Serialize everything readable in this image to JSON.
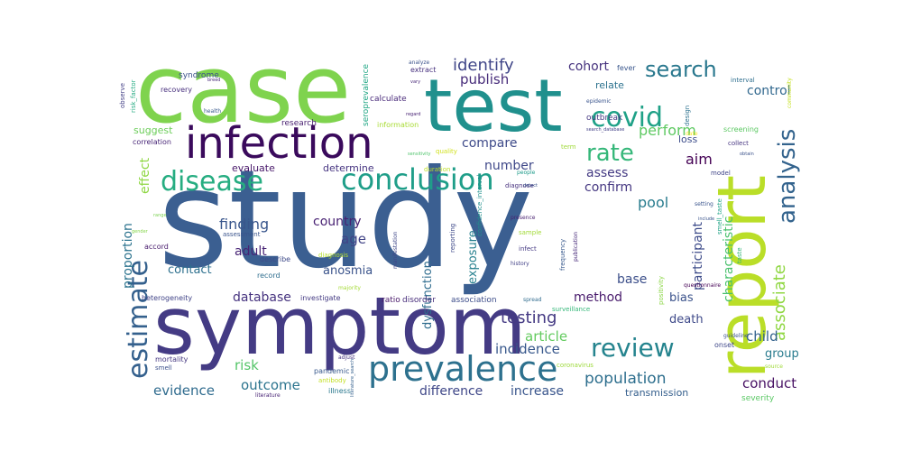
{
  "wordcloud": {
    "words": [
      {
        "text": "study",
        "color": "#3b5f91"
      },
      {
        "text": "case",
        "color": "#7fd34e"
      },
      {
        "text": "test",
        "color": "#20908d"
      },
      {
        "text": "symptom",
        "color": "#443b84"
      },
      {
        "text": "report",
        "color": "#bade28"
      },
      {
        "text": "infection",
        "color": "#3a0a5c"
      },
      {
        "text": "prevalence",
        "color": "#2d718e"
      },
      {
        "text": "conclusion",
        "color": "#1f9e89"
      },
      {
        "text": "disease",
        "color": "#26ad81"
      },
      {
        "text": "estimate",
        "color": "#34608d"
      },
      {
        "text": "covid",
        "color": "#1fa187"
      },
      {
        "text": "analysis",
        "color": "#33638d"
      },
      {
        "text": "review",
        "color": "#25848e"
      },
      {
        "text": "search",
        "color": "#2a788e"
      },
      {
        "text": "rate",
        "color": "#35b779"
      },
      {
        "text": "testing",
        "color": "#443983"
      },
      {
        "text": "identify",
        "color": "#404688"
      },
      {
        "text": "associate",
        "color": "#90d743"
      },
      {
        "text": "population",
        "color": "#2e6f8e"
      },
      {
        "text": "compare",
        "color": "#3e4a89"
      },
      {
        "text": "finding",
        "color": "#39568c"
      },
      {
        "text": "proportion",
        "color": "#2c738e"
      },
      {
        "text": "effect",
        "color": "#8fd744"
      },
      {
        "text": "publish",
        "color": "#472c7a"
      },
      {
        "text": "cohort",
        "color": "#46327e"
      },
      {
        "text": "perform",
        "color": "#5ec962"
      },
      {
        "text": "number",
        "color": "#3f4889"
      },
      {
        "text": "assess",
        "color": "#443a83"
      },
      {
        "text": "aim",
        "color": "#440154"
      },
      {
        "text": "confirm",
        "color": "#453781"
      },
      {
        "text": "pool",
        "color": "#287c8e"
      },
      {
        "text": "country",
        "color": "#482173"
      },
      {
        "text": "age",
        "color": "#414487"
      },
      {
        "text": "participant",
        "color": "#3e4c8a"
      },
      {
        "text": "characteristic",
        "color": "#4ac16d"
      },
      {
        "text": "control",
        "color": "#31688e"
      },
      {
        "text": "evidence",
        "color": "#2f6b8e"
      },
      {
        "text": "outcome",
        "color": "#2b748e"
      },
      {
        "text": "difference",
        "color": "#3f4788"
      },
      {
        "text": "increase",
        "color": "#39558c"
      },
      {
        "text": "incidence",
        "color": "#38588c"
      },
      {
        "text": "article",
        "color": "#63cb5f"
      },
      {
        "text": "risk",
        "color": "#54c568"
      },
      {
        "text": "database",
        "color": "#46337f"
      },
      {
        "text": "contact",
        "color": "#2d708e"
      },
      {
        "text": "adult",
        "color": "#482475"
      },
      {
        "text": "bias",
        "color": "#3b528b"
      },
      {
        "text": "death",
        "color": "#3e4989"
      },
      {
        "text": "child",
        "color": "#33628d"
      },
      {
        "text": "group",
        "color": "#297b8e"
      },
      {
        "text": "conduct",
        "color": "#471063"
      },
      {
        "text": "method",
        "color": "#481a6c"
      },
      {
        "text": "base",
        "color": "#3c4f8a"
      },
      {
        "text": "exposure",
        "color": "#27808e"
      },
      {
        "text": "dysfunction",
        "color": "#2f6c8e"
      },
      {
        "text": "anosmia",
        "color": "#3a538b"
      },
      {
        "text": "transmission",
        "color": "#355f8d"
      },
      {
        "text": "evaluate",
        "color": "#48186a"
      },
      {
        "text": "determine",
        "color": "#463480"
      },
      {
        "text": "suggest",
        "color": "#6ccd5a"
      },
      {
        "text": "loss",
        "color": "#3d4d8a"
      },
      {
        "text": "relate",
        "color": "#2c728e"
      },
      {
        "text": "outbreak",
        "color": "#453882"
      },
      {
        "text": "term",
        "color": "#a0da39"
      },
      {
        "text": "research",
        "color": "#481f70"
      },
      {
        "text": "correlation",
        "color": "#482677"
      },
      {
        "text": "syndrome",
        "color": "#3b518b"
      },
      {
        "text": "recovery",
        "color": "#472f7d"
      },
      {
        "text": "observe",
        "color": "#423f85"
      },
      {
        "text": "risk_factor",
        "color": "#25ab82"
      },
      {
        "text": "seroprevalence",
        "color": "#22a785"
      },
      {
        "text": "calculate",
        "color": "#482979"
      },
      {
        "text": "information",
        "color": "#a8db34"
      },
      {
        "text": "fever",
        "color": "#39568c"
      },
      {
        "text": "interval",
        "color": "#2e6e8e"
      },
      {
        "text": "epidemic",
        "color": "#3a548c"
      },
      {
        "text": "screening",
        "color": "#5cc863"
      },
      {
        "text": "collect",
        "color": "#463480"
      },
      {
        "text": "model",
        "color": "#404588"
      },
      {
        "text": "design",
        "color": "#2c718e"
      },
      {
        "text": "smell_taste",
        "color": "#20a386"
      },
      {
        "text": "taste",
        "color": "#34b679"
      },
      {
        "text": "reporting",
        "color": "#3e4989"
      },
      {
        "text": "diagnose",
        "color": "#46307e"
      },
      {
        "text": "frequency",
        "color": "#38598c"
      },
      {
        "text": "publication",
        "color": "#472a7a"
      },
      {
        "text": "sample",
        "color": "#a2da37"
      },
      {
        "text": "infect",
        "color": "#443983"
      },
      {
        "text": "presence",
        "color": "#482071"
      },
      {
        "text": "history",
        "color": "#424086"
      },
      {
        "text": "confidence_interval",
        "color": "#21908d"
      },
      {
        "text": "manifestation",
        "color": "#3f4889"
      },
      {
        "text": "diagnosis",
        "color": "#b5de2b"
      },
      {
        "text": "ratio",
        "color": "#481769"
      },
      {
        "text": "disorder",
        "color": "#472d7b"
      },
      {
        "text": "association",
        "color": "#3d4d8a"
      },
      {
        "text": "spread",
        "color": "#2f6b8e"
      },
      {
        "text": "surveillance",
        "color": "#35b779"
      },
      {
        "text": "positivity",
        "color": "#8bd646"
      },
      {
        "text": "heterogeneity",
        "color": "#404387"
      },
      {
        "text": "investigate",
        "color": "#443a83"
      },
      {
        "text": "majority",
        "color": "#a5db36"
      },
      {
        "text": "mortality",
        "color": "#453781"
      },
      {
        "text": "smell",
        "color": "#3c508b"
      },
      {
        "text": "adjust",
        "color": "#46337f"
      },
      {
        "text": "pandemic",
        "color": "#38598c"
      },
      {
        "text": "antibody",
        "color": "#c2df23"
      },
      {
        "text": "illness",
        "color": "#2a788e"
      },
      {
        "text": "literature",
        "color": "#482475"
      },
      {
        "text": "coronavirus",
        "color": "#9dd93b"
      },
      {
        "text": "questionnaire",
        "color": "#440154"
      },
      {
        "text": "onset",
        "color": "#3f4889"
      },
      {
        "text": "severity",
        "color": "#5ac864"
      },
      {
        "text": "source",
        "color": "#a0da39"
      },
      {
        "text": "guideline",
        "color": "#3b528b"
      },
      {
        "text": "accord",
        "color": "#481b6d"
      },
      {
        "text": "describe",
        "color": "#3e4a89"
      },
      {
        "text": "record",
        "color": "#2e6d8e"
      },
      {
        "text": "assessment",
        "color": "#3a548c"
      },
      {
        "text": "health",
        "color": "#38588c"
      },
      {
        "text": "analyze",
        "color": "#3b528b"
      },
      {
        "text": "extract",
        "color": "#46307e"
      },
      {
        "text": "quality",
        "color": "#d0e11c"
      },
      {
        "text": "duration",
        "color": "#bddf26"
      },
      {
        "text": "people",
        "color": "#1e9b8a"
      },
      {
        "text": "search_database",
        "color": "#424086"
      },
      {
        "text": "community",
        "color": "#c5e021"
      },
      {
        "text": "obtain",
        "color": "#3b528b"
      },
      {
        "text": "vary",
        "color": "#482878"
      },
      {
        "text": "setting",
        "color": "#3a548c"
      },
      {
        "text": "date",
        "color": "#fde725"
      },
      {
        "text": "regard",
        "color": "#482374"
      },
      {
        "text": "gender",
        "color": "#85d54a"
      },
      {
        "text": "range",
        "color": "#7ad151"
      },
      {
        "text": "include",
        "color": "#3a548c"
      },
      {
        "text": "sensitivity",
        "color": "#4ec36b"
      },
      {
        "text": "literature_search",
        "color": "#35608d"
      },
      {
        "text": "detect",
        "color": "#3b528b"
      },
      {
        "text": "breed",
        "color": "#482979"
      }
    ]
  }
}
